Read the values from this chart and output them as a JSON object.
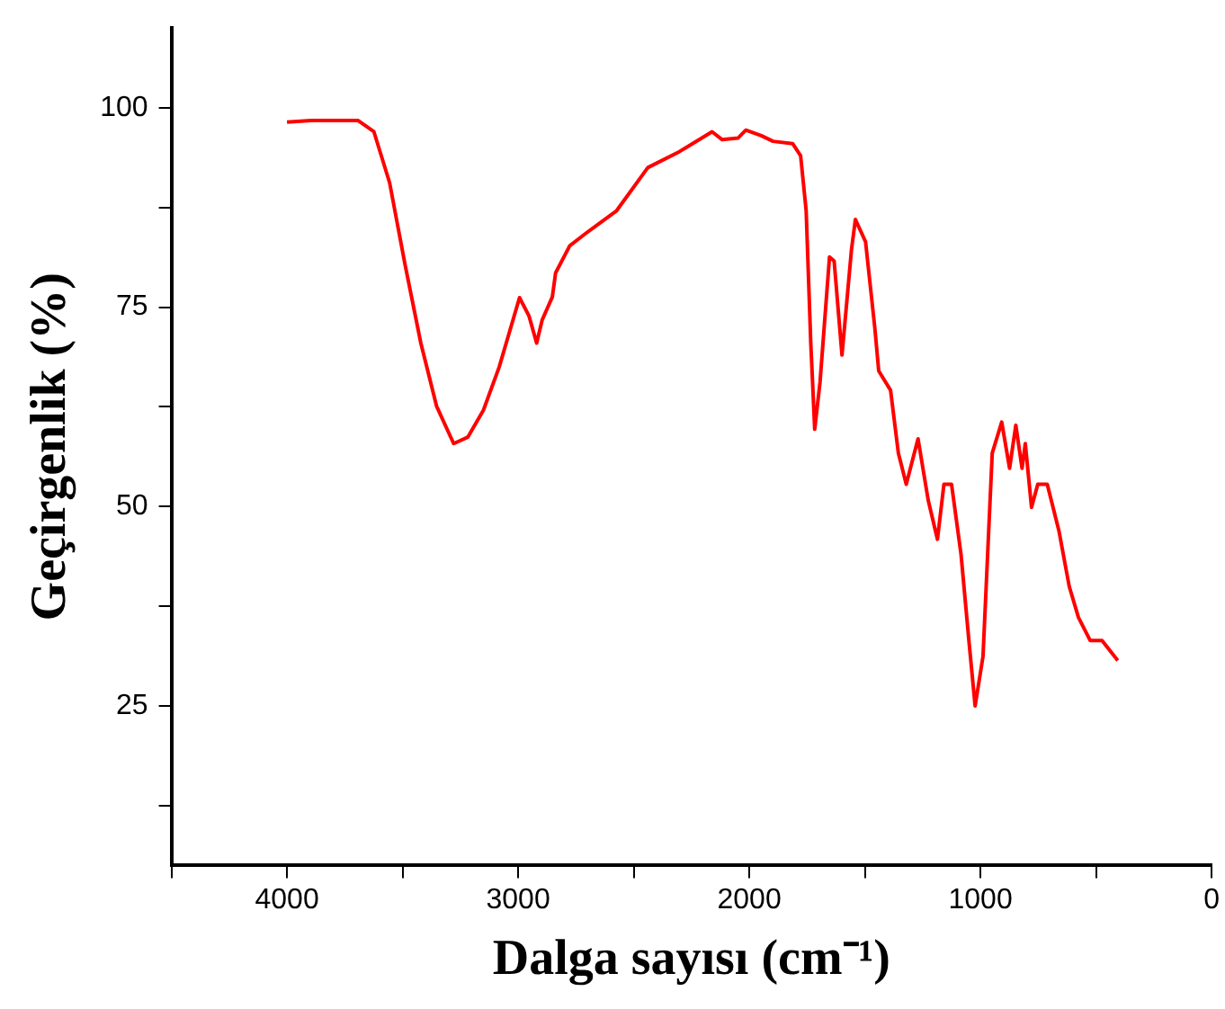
{
  "chart_data": {
    "type": "line",
    "xlabel": "Dalga sayısı (cm⁻¹)",
    "ylabel": "Geçirgenlik (%)",
    "xlim": [
      4500,
      0
    ],
    "ylim": [
      5,
      110
    ],
    "xticks": [
      {
        "value": 4500,
        "label": null
      },
      4000,
      {
        "value": 3500,
        "label": null
      },
      3000,
      {
        "value": 2500,
        "label": null
      },
      2000,
      {
        "value": 1500,
        "label": null
      },
      1000,
      {
        "value": 500,
        "label": null
      },
      0
    ],
    "yticks": [
      {
        "value": 12.5,
        "label": null
      },
      25,
      {
        "value": 37.5,
        "label": null
      },
      50,
      {
        "value": 62.5,
        "label": null
      },
      75,
      {
        "value": 87.5,
        "label": null
      },
      100
    ],
    "grid": false,
    "legend": false,
    "marker": "none",
    "line_style": "solid",
    "series": [
      {
        "color": "#ff0000",
        "x": [
          4000,
          3895,
          3692,
          3624,
          3556,
          3489,
          3421,
          3353,
          3279,
          3218,
          3150,
          3082,
          2994,
          2953,
          2920,
          2896,
          2852,
          2838,
          2777,
          2710,
          2574,
          2439,
          2303,
          2161,
          2117,
          2049,
          2015,
          1948,
          1897,
          1812,
          1778,
          1754,
          1734,
          1717,
          1694,
          1653,
          1633,
          1599,
          1558,
          1541,
          1497,
          1457,
          1440,
          1389,
          1355,
          1321,
          1270,
          1226,
          1186,
          1158,
          1125,
          1084,
          1050,
          1023,
          989,
          949,
          908,
          874,
          847,
          820,
          806,
          779,
          752,
          711,
          660,
          616,
          576,
          525,
          474,
          406
        ],
        "values": [
          98.2,
          98.4,
          98.4,
          97,
          90.6,
          80.3,
          70.5,
          62.6,
          57.9,
          58.7,
          62.1,
          67.5,
          76.2,
          73.9,
          70.5,
          73.4,
          76.3,
          79.3,
          82.7,
          84.2,
          87.1,
          92.5,
          94.5,
          97,
          96,
          96.2,
          97.2,
          96.5,
          95.8,
          95.5,
          94,
          87.1,
          70.5,
          59.7,
          65.6,
          81.3,
          80.8,
          69,
          82.2,
          86,
          83.2,
          72.4,
          67,
          64.6,
          56.7,
          52.8,
          58.5,
          50.8,
          45.9,
          52.8,
          52.8,
          44,
          33.2,
          25,
          31.2,
          56.7,
          60.6,
          54.8,
          60.2,
          54.8,
          57.9,
          49.9,
          52.8,
          52.8,
          46.9,
          40,
          36.1,
          33.2,
          33.2,
          30.7
        ]
      }
    ]
  }
}
